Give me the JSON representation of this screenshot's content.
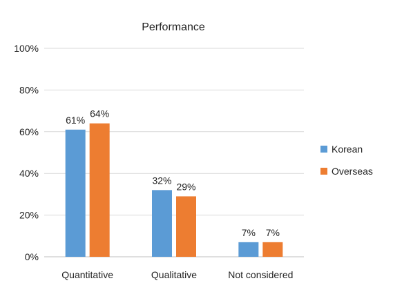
{
  "chart_data": {
    "type": "bar",
    "title": "Performance",
    "categories": [
      "Quantitative",
      "Qualitative",
      "Not considered"
    ],
    "series": [
      {
        "name": "Korean",
        "values": [
          61,
          32,
          7
        ],
        "labels": [
          "61%",
          "32%",
          "7%"
        ],
        "color": "#5b9bd5"
      },
      {
        "name": "Overseas",
        "values": [
          64,
          29,
          7
        ],
        "labels": [
          "64%",
          "29%",
          "7%"
        ],
        "color": "#ed7d31"
      }
    ],
    "ylim": [
      0,
      100
    ],
    "yticks": [
      0,
      20,
      40,
      60,
      80,
      100
    ],
    "ytick_labels": [
      "0%",
      "20%",
      "40%",
      "60%",
      "80%",
      "100%"
    ],
    "grid": true,
    "legend_position": "right"
  }
}
